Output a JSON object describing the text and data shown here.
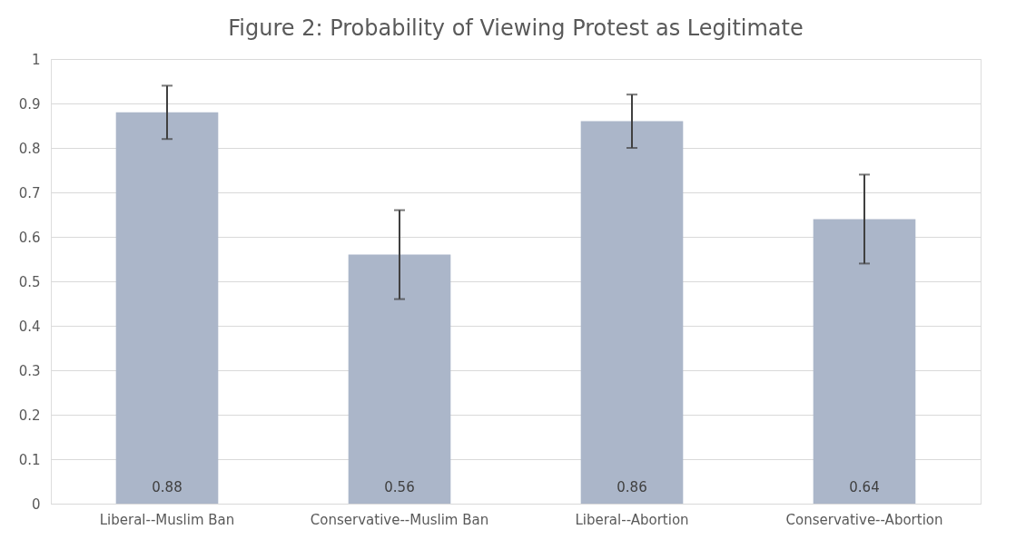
{
  "chart_data": {
    "type": "bar",
    "title": "Figure 2: Probability of Viewing Protest as Legitimate",
    "categories": [
      "Liberal--Muslim Ban",
      "Conservative--Muslim Ban",
      "Liberal--Abortion",
      "Conservative--Abortion"
    ],
    "values": [
      0.88,
      0.56,
      0.86,
      0.64
    ],
    "color": "#abb6c9",
    "errors": [
      [
        0.82,
        0.94
      ],
      [
        0.46,
        0.66
      ],
      [
        0.8,
        0.92
      ],
      [
        0.54,
        0.74
      ]
    ],
    "data_labels": true,
    "ylim": [
      0,
      1
    ],
    "yticks": [
      0,
      0.1,
      0.2,
      0.3,
      0.4,
      0.5,
      0.6,
      0.7,
      0.8,
      0.9,
      1
    ],
    "grid": "y"
  }
}
